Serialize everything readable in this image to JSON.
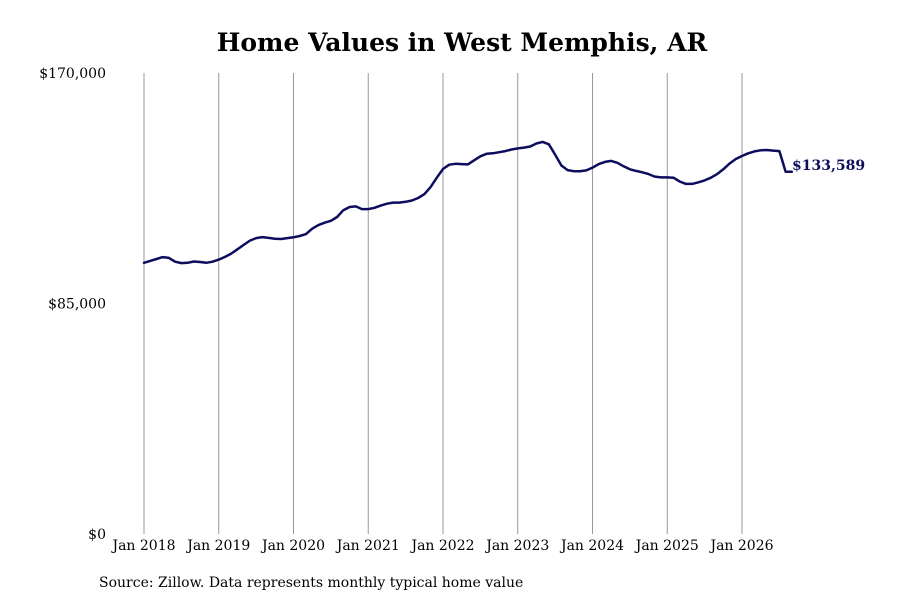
{
  "chart_data": {
    "type": "line",
    "title": "Home Values in West Memphis, AR",
    "xlabel": "",
    "ylabel": "",
    "ylim": [
      0,
      170000
    ],
    "y_ticks": [
      {
        "value": 0,
        "label": "$0"
      },
      {
        "value": 85000,
        "label": "$85,000"
      },
      {
        "value": 170000,
        "label": "$170,000"
      }
    ],
    "x_ticks": [
      {
        "value": "2018-01",
        "label": "Jan 2018"
      },
      {
        "value": "2019-01",
        "label": "Jan 2019"
      },
      {
        "value": "2020-01",
        "label": "Jan 2020"
      },
      {
        "value": "2021-01",
        "label": "Jan 2021"
      },
      {
        "value": "2022-01",
        "label": "Jan 2022"
      },
      {
        "value": "2023-01",
        "label": "Jan 2023"
      },
      {
        "value": "2024-01",
        "label": "Jan 2024"
      },
      {
        "value": "2025-01",
        "label": "Jan 2025"
      },
      {
        "value": "2026-01",
        "label": "Jan 2026"
      }
    ],
    "grid": "vertical",
    "end_label": "$133,589",
    "series_color": "#0d0d5e",
    "series": [
      {
        "x": [
          "2018-01",
          "2018-02",
          "2018-03",
          "2018-04",
          "2018-05",
          "2018-06",
          "2018-07",
          "2018-08",
          "2018-09",
          "2018-10",
          "2018-11",
          "2018-12",
          "2019-01",
          "2019-02",
          "2019-03",
          "2019-04",
          "2019-05",
          "2019-06",
          "2019-07",
          "2019-08",
          "2019-09",
          "2019-10",
          "2019-11",
          "2019-12",
          "2020-01",
          "2020-02",
          "2020-03",
          "2020-04",
          "2020-05",
          "2020-06",
          "2020-07",
          "2020-08",
          "2020-09",
          "2020-10",
          "2020-11",
          "2020-12",
          "2021-01",
          "2021-02",
          "2021-03",
          "2021-04",
          "2021-05",
          "2021-06",
          "2021-07",
          "2021-08",
          "2021-09",
          "2021-10",
          "2021-11",
          "2021-12",
          "2022-01",
          "2022-02",
          "2022-03",
          "2022-04",
          "2022-05",
          "2022-06",
          "2022-07",
          "2022-08",
          "2022-09",
          "2022-10",
          "2022-11",
          "2022-12",
          "2023-01",
          "2023-02",
          "2023-03",
          "2023-04",
          "2023-05",
          "2023-06",
          "2023-07",
          "2023-08",
          "2023-09",
          "2023-10",
          "2023-11",
          "2023-12",
          "2024-01",
          "2024-02",
          "2024-03",
          "2024-04",
          "2024-05",
          "2024-06",
          "2024-07",
          "2024-08",
          "2024-09",
          "2024-10",
          "2024-11",
          "2024-12",
          "2025-01",
          "2025-02",
          "2025-03",
          "2025-04",
          "2025-05",
          "2025-06",
          "2025-07",
          "2025-08",
          "2025-09",
          "2025-10",
          "2025-11",
          "2025-12",
          "2026-01",
          "2026-02",
          "2026-03",
          "2026-04",
          "2026-05",
          "2026-06",
          "2026-07",
          "2026-08",
          "2026-09"
        ],
        "values": [
          100000,
          100700,
          101400,
          102100,
          101800,
          100400,
          99900,
          100000,
          100500,
          100300,
          100000,
          100400,
          101200,
          102200,
          103400,
          105000,
          106600,
          108200,
          109100,
          109500,
          109200,
          108900,
          108800,
          109100,
          109400,
          109900,
          110600,
          112600,
          113900,
          114800,
          115500,
          116900,
          119400,
          120600,
          120800,
          119800,
          119800,
          120300,
          121100,
          121800,
          122200,
          122200,
          122500,
          123000,
          123900,
          125300,
          127900,
          131400,
          134600,
          136200,
          136500,
          136400,
          136300,
          137800,
          139300,
          140200,
          140400,
          140800,
          141200,
          141800,
          142200,
          142500,
          142900,
          144000,
          144600,
          143700,
          139900,
          135900,
          134200,
          133800,
          133800,
          134100,
          135100,
          136400,
          137200,
          137600,
          136900,
          135600,
          134500,
          133900,
          133400,
          132700,
          131800,
          131500,
          131500,
          131400,
          130000,
          129100,
          129100,
          129700,
          130400,
          131400,
          132700,
          134500,
          136600,
          138300,
          139400,
          140400,
          141100,
          141500,
          141600,
          141400,
          141200,
          133589,
          133589
        ]
      }
    ]
  },
  "source_text": "Source: Zillow. Data represents monthly typical home value"
}
